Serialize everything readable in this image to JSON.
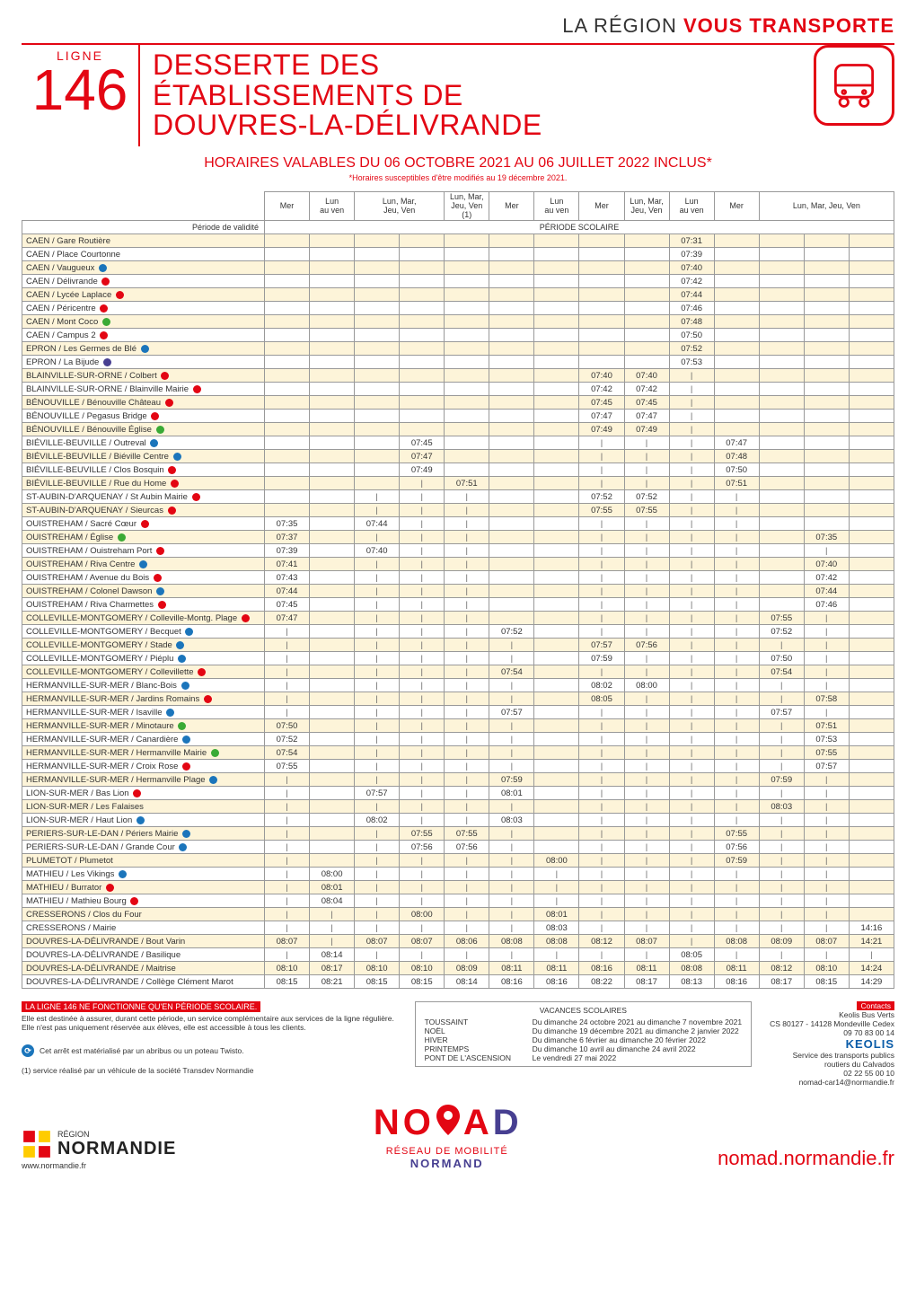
{
  "brand_prefix": "LA RÉGION ",
  "brand_bold": "VOUS TRANSPORTE",
  "line_label": "LIGNE",
  "line_number": "146",
  "title_lines": [
    "DESSERTE DES",
    "ÉTABLISSEMENTS DE",
    "DOUVRES-LA-DÉLIVRANDE"
  ],
  "validity": "HORAIRES VALABLES DU 06 OCTOBRE 2021 AU 06 JUILLET 2022 INCLUS*",
  "validity_note": "*Horaires susceptibles d'être modifiés au 19 décembre 2021.",
  "period_label": "Période de validité",
  "period_value": "PÉRIODE SCOLAIRE",
  "col_headers": [
    "Mer",
    "Lun\nau ven",
    "Lun, Mar,\nJeu, Ven",
    "",
    "Lun, Mar,\nJeu, Ven\n(1)",
    "Mer",
    "Lun\nau ven",
    "Mer",
    "Lun, Mar,\nJeu, Ven",
    "Lun\nau ven",
    "Mer",
    "Lun, Mar, Jeu, Ven",
    "",
    ""
  ],
  "header_colspans": [
    1,
    1,
    2,
    0,
    1,
    1,
    1,
    1,
    1,
    1,
    1,
    3,
    0,
    0
  ],
  "icon_colors": {
    "blue": "#1b75bb",
    "red": "#e30613",
    "green": "#3aaa35",
    "navy": "#473f91"
  },
  "stops": [
    {
      "n": "CAEN / Gare Routière",
      "i": null
    },
    {
      "n": "CAEN / Place Courtonne",
      "i": null
    },
    {
      "n": "CAEN / Vaugueux",
      "i": "blue"
    },
    {
      "n": "CAEN / Délivrande",
      "i": "red"
    },
    {
      "n": "CAEN / Lycée Laplace",
      "i": "red"
    },
    {
      "n": "CAEN / Péricentre",
      "i": "red"
    },
    {
      "n": "CAEN / Mont Coco",
      "i": "green"
    },
    {
      "n": "CAEN / Campus 2",
      "i": "red"
    },
    {
      "n": "EPRON / Les Germes de Blé",
      "i": "blue"
    },
    {
      "n": "EPRON / La Bijude",
      "i": "navy"
    },
    {
      "n": "BLAINVILLE-SUR-ORNE / Colbert",
      "i": "red"
    },
    {
      "n": "BLAINVILLE-SUR-ORNE / Blainville Mairie",
      "i": "red"
    },
    {
      "n": "BÉNOUVILLE / Bénouville Château",
      "i": "red"
    },
    {
      "n": "BÉNOUVILLE / Pegasus Bridge",
      "i": "red"
    },
    {
      "n": "BÉNOUVILLE / Bénouville Église",
      "i": "green"
    },
    {
      "n": "BIÉVILLE-BEUVILLE / Outreval",
      "i": "blue"
    },
    {
      "n": "BIÉVILLE-BEUVILLE / Biéville Centre",
      "i": "blue"
    },
    {
      "n": "BIÉVILLE-BEUVILLE / Clos Bosquin",
      "i": "red"
    },
    {
      "n": "BIÉVILLE-BEUVILLE / Rue du Home",
      "i": "red"
    },
    {
      "n": "ST-AUBIN-D'ARQUENAY / St Aubin Mairie",
      "i": "red"
    },
    {
      "n": "ST-AUBIN-D'ARQUENAY / Sieurcas",
      "i": "red"
    },
    {
      "n": "OUISTREHAM / Sacré Cœur",
      "i": "red"
    },
    {
      "n": "OUISTREHAM / Église",
      "i": "green"
    },
    {
      "n": "OUISTREHAM / Ouistreham Port",
      "i": "red"
    },
    {
      "n": "OUISTREHAM / Riva Centre",
      "i": "blue"
    },
    {
      "n": "OUISTREHAM / Avenue du Bois",
      "i": "red"
    },
    {
      "n": "OUISTREHAM / Colonel Dawson",
      "i": "blue"
    },
    {
      "n": "OUISTREHAM / Riva Charmettes",
      "i": "red"
    },
    {
      "n": "COLLEVILLE-MONTGOMERY / Colleville-Montg. Plage",
      "i": "red"
    },
    {
      "n": "COLLEVILLE-MONTGOMERY / Becquet",
      "i": "blue"
    },
    {
      "n": "COLLEVILLE-MONTGOMERY / Stade",
      "i": "blue"
    },
    {
      "n": "COLLEVILLE-MONTGOMERY / Piéplu",
      "i": "blue"
    },
    {
      "n": "COLLEVILLE-MONTGOMERY / Collevillette",
      "i": "red"
    },
    {
      "n": "HERMANVILLE-SUR-MER / Blanc-Bois",
      "i": "blue"
    },
    {
      "n": "HERMANVILLE-SUR-MER / Jardins Romains",
      "i": "red"
    },
    {
      "n": "HERMANVILLE-SUR-MER / Isaville",
      "i": "blue"
    },
    {
      "n": "HERMANVILLE-SUR-MER / Minotaure",
      "i": "green"
    },
    {
      "n": "HERMANVILLE-SUR-MER / Canardière",
      "i": "blue"
    },
    {
      "n": "HERMANVILLE-SUR-MER / Hermanville Mairie",
      "i": "green"
    },
    {
      "n": "HERMANVILLE-SUR-MER / Croix Rose",
      "i": "red"
    },
    {
      "n": "HERMANVILLE-SUR-MER / Hermanville Plage",
      "i": "blue"
    },
    {
      "n": "LION-SUR-MER / Bas Lion",
      "i": "red"
    },
    {
      "n": "LION-SUR-MER / Les Falaises",
      "i": null
    },
    {
      "n": "LION-SUR-MER / Haut Lion",
      "i": "blue"
    },
    {
      "n": "PERIERS-SUR-LE-DAN / Périers Mairie",
      "i": "blue"
    },
    {
      "n": "PERIERS-SUR-LE-DAN / Grande Cour",
      "i": "blue"
    },
    {
      "n": "PLUMETOT / Plumetot",
      "i": null
    },
    {
      "n": "MATHIEU / Les Vikings",
      "i": "blue"
    },
    {
      "n": "MATHIEU / Burrator",
      "i": "red"
    },
    {
      "n": "MATHIEU / Mathieu Bourg",
      "i": "red"
    },
    {
      "n": "CRESSERONS / Clos du Four",
      "i": null
    },
    {
      "n": "CRESSERONS / Mairie",
      "i": null
    },
    {
      "n": "DOUVRES-LA-DÉLIVRANDE / Bout Varin",
      "i": null
    },
    {
      "n": "DOUVRES-LA-DÉLIVRANDE / Basilique",
      "i": null
    },
    {
      "n": "DOUVRES-LA-DÉLIVRANDE / Maitrise",
      "i": null
    },
    {
      "n": "DOUVRES-LA-DÉLIVRANDE / Collège Clément Marot",
      "i": null
    }
  ],
  "times": [
    [
      "",
      "",
      "",
      "",
      "",
      "",
      "",
      "",
      "",
      "07:31",
      "",
      "",
      "",
      ""
    ],
    [
      "",
      "",
      "",
      "",
      "",
      "",
      "",
      "",
      "",
      "07:39",
      "",
      "",
      "",
      ""
    ],
    [
      "",
      "",
      "",
      "",
      "",
      "",
      "",
      "",
      "",
      "07:40",
      "",
      "",
      "",
      ""
    ],
    [
      "",
      "",
      "",
      "",
      "",
      "",
      "",
      "",
      "",
      "07:42",
      "",
      "",
      "",
      ""
    ],
    [
      "",
      "",
      "",
      "",
      "",
      "",
      "",
      "",
      "",
      "07:44",
      "",
      "",
      "",
      ""
    ],
    [
      "",
      "",
      "",
      "",
      "",
      "",
      "",
      "",
      "",
      "07:46",
      "",
      "",
      "",
      ""
    ],
    [
      "",
      "",
      "",
      "",
      "",
      "",
      "",
      "",
      "",
      "07:48",
      "",
      "",
      "",
      ""
    ],
    [
      "",
      "",
      "",
      "",
      "",
      "",
      "",
      "",
      "",
      "07:50",
      "",
      "",
      "",
      ""
    ],
    [
      "",
      "",
      "",
      "",
      "",
      "",
      "",
      "",
      "",
      "07:52",
      "",
      "",
      "",
      ""
    ],
    [
      "",
      "",
      "",
      "",
      "",
      "",
      "",
      "",
      "",
      "07:53",
      "",
      "",
      "",
      ""
    ],
    [
      "",
      "",
      "",
      "",
      "",
      "",
      "",
      "07:40",
      "07:40",
      "|",
      "",
      "",
      "",
      ""
    ],
    [
      "",
      "",
      "",
      "",
      "",
      "",
      "",
      "07:42",
      "07:42",
      "|",
      "",
      "",
      "",
      ""
    ],
    [
      "",
      "",
      "",
      "",
      "",
      "",
      "",
      "07:45",
      "07:45",
      "|",
      "",
      "",
      "",
      ""
    ],
    [
      "",
      "",
      "",
      "",
      "",
      "",
      "",
      "07:47",
      "07:47",
      "|",
      "",
      "",
      "",
      ""
    ],
    [
      "",
      "",
      "",
      "",
      "",
      "",
      "",
      "07:49",
      "07:49",
      "|",
      "",
      "",
      "",
      ""
    ],
    [
      "",
      "",
      "",
      "07:45",
      "",
      "",
      "",
      "|",
      "|",
      "|",
      "07:47",
      "",
      "",
      ""
    ],
    [
      "",
      "",
      "",
      "07:47",
      "",
      "",
      "",
      "|",
      "|",
      "|",
      "07:48",
      "",
      "",
      ""
    ],
    [
      "",
      "",
      "",
      "07:49",
      "",
      "",
      "",
      "|",
      "|",
      "|",
      "07:50",
      "",
      "",
      ""
    ],
    [
      "",
      "",
      "",
      "|",
      "07:51",
      "",
      "",
      "|",
      "|",
      "|",
      "07:51",
      "",
      "",
      ""
    ],
    [
      "",
      "",
      "|",
      "|",
      "|",
      "",
      "",
      "07:52",
      "07:52",
      "|",
      "|",
      "",
      "",
      ""
    ],
    [
      "",
      "",
      "|",
      "|",
      "|",
      "",
      "",
      "07:55",
      "07:55",
      "|",
      "|",
      "",
      "",
      ""
    ],
    [
      "07:35",
      "",
      "07:44",
      "|",
      "|",
      "",
      "",
      "|",
      "|",
      "|",
      "|",
      "",
      "",
      ""
    ],
    [
      "07:37",
      "",
      "|",
      "|",
      "|",
      "",
      "",
      "|",
      "|",
      "|",
      "|",
      "",
      "07:35",
      ""
    ],
    [
      "07:39",
      "",
      "07:40",
      "|",
      "|",
      "",
      "",
      "|",
      "|",
      "|",
      "|",
      "",
      "|",
      ""
    ],
    [
      "07:41",
      "",
      "|",
      "|",
      "|",
      "",
      "",
      "|",
      "|",
      "|",
      "|",
      "",
      "07:40",
      ""
    ],
    [
      "07:43",
      "",
      "|",
      "|",
      "|",
      "",
      "",
      "|",
      "|",
      "|",
      "|",
      "",
      "07:42",
      ""
    ],
    [
      "07:44",
      "",
      "|",
      "|",
      "|",
      "",
      "",
      "|",
      "|",
      "|",
      "|",
      "",
      "07:44",
      ""
    ],
    [
      "07:45",
      "",
      "|",
      "|",
      "|",
      "",
      "",
      "|",
      "|",
      "|",
      "|",
      "",
      "07:46",
      ""
    ],
    [
      "07:47",
      "",
      "|",
      "|",
      "|",
      "",
      "",
      "|",
      "|",
      "|",
      "|",
      "07:55",
      "|",
      ""
    ],
    [
      "|",
      "",
      "|",
      "|",
      "|",
      "07:52",
      "",
      "|",
      "|",
      "|",
      "|",
      "07:52",
      "|",
      ""
    ],
    [
      "|",
      "",
      "|",
      "|",
      "|",
      "|",
      "",
      "07:57",
      "07:56",
      "|",
      "|",
      "|",
      "|",
      ""
    ],
    [
      "|",
      "",
      "|",
      "|",
      "|",
      "|",
      "",
      "07:59",
      "|",
      "|",
      "|",
      "07:50",
      "|",
      ""
    ],
    [
      "|",
      "",
      "|",
      "|",
      "|",
      "07:54",
      "",
      "|",
      "|",
      "|",
      "|",
      "07:54",
      "|",
      ""
    ],
    [
      "|",
      "",
      "|",
      "|",
      "|",
      "|",
      "",
      "08:02",
      "08:00",
      "|",
      "|",
      "|",
      "|",
      ""
    ],
    [
      "|",
      "",
      "|",
      "|",
      "|",
      "|",
      "",
      "08:05",
      "|",
      "|",
      "|",
      "|",
      "07:58",
      ""
    ],
    [
      "|",
      "",
      "|",
      "|",
      "|",
      "07:57",
      "",
      "|",
      "|",
      "|",
      "|",
      "07:57",
      "|",
      ""
    ],
    [
      "07:50",
      "",
      "|",
      "|",
      "|",
      "|",
      "",
      "|",
      "|",
      "|",
      "|",
      "|",
      "07:51",
      ""
    ],
    [
      "07:52",
      "",
      "|",
      "|",
      "|",
      "|",
      "",
      "|",
      "|",
      "|",
      "|",
      "|",
      "07:53",
      ""
    ],
    [
      "07:54",
      "",
      "|",
      "|",
      "|",
      "|",
      "",
      "|",
      "|",
      "|",
      "|",
      "|",
      "07:55",
      ""
    ],
    [
      "07:55",
      "",
      "|",
      "|",
      "|",
      "|",
      "",
      "|",
      "|",
      "|",
      "|",
      "|",
      "07:57",
      ""
    ],
    [
      "|",
      "",
      "|",
      "|",
      "|",
      "07:59",
      "",
      "|",
      "|",
      "|",
      "|",
      "07:59",
      "|",
      ""
    ],
    [
      "|",
      "",
      "07:57",
      "|",
      "|",
      "08:01",
      "",
      "|",
      "|",
      "|",
      "|",
      "|",
      "|",
      ""
    ],
    [
      "|",
      "",
      "|",
      "|",
      "|",
      "|",
      "",
      "|",
      "|",
      "|",
      "|",
      "08:03",
      "|",
      ""
    ],
    [
      "|",
      "",
      "08:02",
      "|",
      "|",
      "08:03",
      "",
      "|",
      "|",
      "|",
      "|",
      "|",
      "|",
      ""
    ],
    [
      "|",
      "",
      "|",
      "07:55",
      "07:55",
      "|",
      "",
      "|",
      "|",
      "|",
      "07:55",
      "|",
      "|",
      ""
    ],
    [
      "|",
      "",
      "|",
      "07:56",
      "07:56",
      "|",
      "",
      "|",
      "|",
      "|",
      "07:56",
      "|",
      "|",
      ""
    ],
    [
      "|",
      "",
      "|",
      "|",
      "|",
      "|",
      "08:00",
      "|",
      "|",
      "|",
      "07:59",
      "|",
      "|",
      ""
    ],
    [
      "|",
      "08:00",
      "|",
      "|",
      "|",
      "|",
      "|",
      "|",
      "|",
      "|",
      "|",
      "|",
      "|",
      ""
    ],
    [
      "|",
      "08:01",
      "|",
      "|",
      "|",
      "|",
      "|",
      "|",
      "|",
      "|",
      "|",
      "|",
      "|",
      ""
    ],
    [
      "|",
      "08:04",
      "|",
      "|",
      "|",
      "|",
      "|",
      "|",
      "|",
      "|",
      "|",
      "|",
      "|",
      ""
    ],
    [
      "|",
      "|",
      "|",
      "08:00",
      "|",
      "|",
      "08:01",
      "|",
      "|",
      "|",
      "|",
      "|",
      "|",
      ""
    ],
    [
      "|",
      "|",
      "|",
      "|",
      "|",
      "|",
      "08:03",
      "|",
      "|",
      "|",
      "|",
      "|",
      "|",
      "14:16"
    ],
    [
      "08:07",
      "|",
      "08:07",
      "08:07",
      "08:06",
      "08:08",
      "08:08",
      "08:12",
      "08:07",
      "|",
      "08:08",
      "08:09",
      "08:07",
      "14:21"
    ],
    [
      "|",
      "08:14",
      "|",
      "|",
      "|",
      "|",
      "|",
      "|",
      "|",
      "08:05",
      "|",
      "|",
      "|",
      "|"
    ],
    [
      "08:10",
      "08:17",
      "08:10",
      "08:10",
      "08:09",
      "08:11",
      "08:11",
      "08:16",
      "08:11",
      "08:08",
      "08:11",
      "08:12",
      "08:10",
      "14:24"
    ],
    [
      "08:15",
      "08:21",
      "08:15",
      "08:15",
      "08:14",
      "08:16",
      "08:16",
      "08:22",
      "08:17",
      "08:13",
      "08:16",
      "08:17",
      "08:15",
      "14:29"
    ]
  ],
  "footer_red": "LA LIGNE 146 NE FONCTIONNE QU'EN PÉRIODE SCOLAIRE.",
  "footer_text": "Elle est destinée à assurer, durant cette période, un service complémentaire aux services de la ligne régulière. Elle n'est pas uniquement réservée aux élèves, elle est accessible à tous les clients.",
  "shelter_text": "Cet arrêt est matérialisé par un abribus ou un poteau Twisto.",
  "transdev_note": "(1) service réalisé par un véhicule de la société Transdev Normandie",
  "vacances_title": "VACANCES SCOLAIRES",
  "vacances": [
    [
      "TOUSSAINT",
      "Du dimanche 24 octobre 2021 au dimanche 7 novembre 2021"
    ],
    [
      "NOËL",
      "Du dimanche 19 décembre 2021 au dimanche 2 janvier 2022"
    ],
    [
      "HIVER",
      "Du dimanche 6 février au dimanche 20 février 2022"
    ],
    [
      "PRINTEMPS",
      "Du dimanche 10 avril au dimanche 24 avril 2022"
    ],
    [
      "PONT DE L'ASCENSION",
      "Le vendredi 27 mai 2022"
    ]
  ],
  "contacts_label": "Contacts",
  "contacts": [
    "Keolis Bus Verts",
    "CS 80127 - 14128 Mondeville Cedex",
    "09 70 83 00 14"
  ],
  "keolis": "KEOLIS",
  "svc": [
    "Service des transports publics",
    "routiers du Calvados",
    "02 22 55 00 10",
    "nomad-car14@normandie.fr"
  ],
  "region_label": "RÉGION",
  "region_name": "NORMANDIE",
  "region_url": "www.normandie.fr",
  "nomad_letters": [
    "N",
    "O",
    "M",
    "A",
    "D"
  ],
  "nomad_sub1": "RÉSEAU DE MOBILITÉ",
  "nomad_sub2": "NORMAND",
  "site_url": "nomad.normandie.fr",
  "alt_row_bg": "#fdf4d9"
}
